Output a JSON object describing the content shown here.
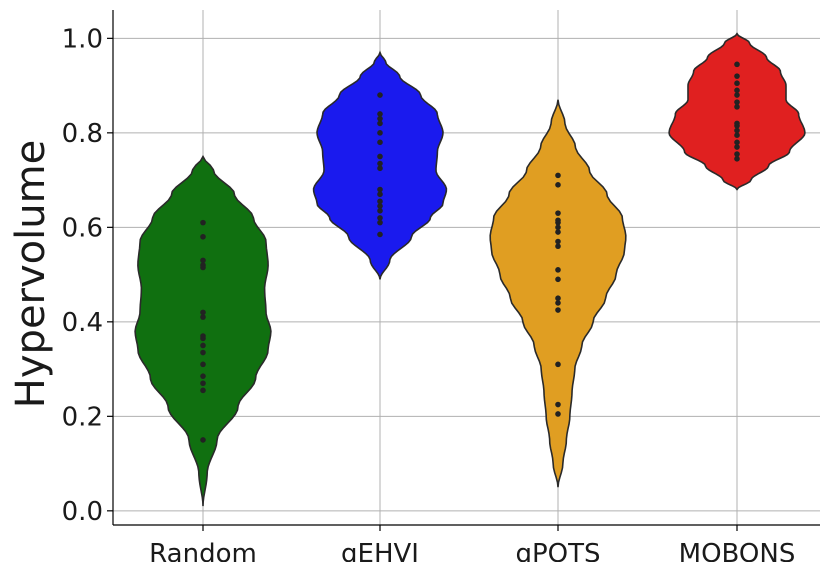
{
  "chart_data": {
    "type": "violin",
    "title": "",
    "xlabel": "",
    "ylabel": "Hypervolume",
    "ylim": [
      -0.03,
      1.06
    ],
    "yticks": [
      0.0,
      0.2,
      0.4,
      0.6,
      0.8,
      1.0
    ],
    "ytick_labels": [
      "0.0",
      "0.2",
      "0.4",
      "0.6",
      "0.8",
      "1.0"
    ],
    "grid": true,
    "categories": [
      "Random",
      "qEHVI",
      "qPOTS",
      "MOBONS"
    ],
    "series": [
      {
        "color": "#107010",
        "violin_range": [
          0.01,
          0.75
        ],
        "profile": [
          [
            0.01,
            0.0
          ],
          [
            0.08,
            0.06
          ],
          [
            0.15,
            0.2
          ],
          [
            0.22,
            0.5
          ],
          [
            0.28,
            0.75
          ],
          [
            0.34,
            0.93
          ],
          [
            0.38,
            0.97
          ],
          [
            0.42,
            0.9
          ],
          [
            0.47,
            0.88
          ],
          [
            0.52,
            0.93
          ],
          [
            0.57,
            0.9
          ],
          [
            0.62,
            0.72
          ],
          [
            0.67,
            0.45
          ],
          [
            0.72,
            0.15
          ],
          [
            0.75,
            0.0
          ]
        ],
        "points": [
          0.15,
          0.255,
          0.27,
          0.285,
          0.31,
          0.335,
          0.35,
          0.365,
          0.37,
          0.41,
          0.42,
          0.515,
          0.52,
          0.53,
          0.58,
          0.61
        ]
      },
      {
        "color": "#1a1aee",
        "violin_range": [
          0.49,
          0.97
        ],
        "profile": [
          [
            0.49,
            0.0
          ],
          [
            0.53,
            0.14
          ],
          [
            0.58,
            0.45
          ],
          [
            0.62,
            0.72
          ],
          [
            0.65,
            0.9
          ],
          [
            0.68,
            0.95
          ],
          [
            0.72,
            0.8
          ],
          [
            0.76,
            0.82
          ],
          [
            0.8,
            0.9
          ],
          [
            0.84,
            0.82
          ],
          [
            0.88,
            0.58
          ],
          [
            0.92,
            0.28
          ],
          [
            0.95,
            0.08
          ],
          [
            0.97,
            0.0
          ]
        ],
        "points": [
          0.585,
          0.61,
          0.62,
          0.635,
          0.645,
          0.655,
          0.67,
          0.68,
          0.725,
          0.735,
          0.75,
          0.78,
          0.8,
          0.82,
          0.83,
          0.84,
          0.88
        ]
      },
      {
        "color": "#e09e22",
        "violin_range": [
          0.05,
          0.87
        ],
        "profile": [
          [
            0.05,
            0.0
          ],
          [
            0.1,
            0.07
          ],
          [
            0.15,
            0.12
          ],
          [
            0.2,
            0.17
          ],
          [
            0.25,
            0.2
          ],
          [
            0.3,
            0.24
          ],
          [
            0.35,
            0.34
          ],
          [
            0.4,
            0.5
          ],
          [
            0.45,
            0.68
          ],
          [
            0.5,
            0.83
          ],
          [
            0.55,
            0.95
          ],
          [
            0.58,
            0.97
          ],
          [
            0.62,
            0.92
          ],
          [
            0.67,
            0.7
          ],
          [
            0.72,
            0.45
          ],
          [
            0.77,
            0.25
          ],
          [
            0.82,
            0.1
          ],
          [
            0.87,
            0.0
          ]
        ],
        "points": [
          0.205,
          0.225,
          0.31,
          0.425,
          0.44,
          0.45,
          0.49,
          0.51,
          0.56,
          0.57,
          0.59,
          0.6,
          0.61,
          0.615,
          0.63,
          0.69,
          0.71
        ]
      },
      {
        "color": "#e02020",
        "violin_range": [
          0.68,
          1.01
        ],
        "profile": [
          [
            0.68,
            0.0
          ],
          [
            0.7,
            0.2
          ],
          [
            0.73,
            0.45
          ],
          [
            0.76,
            0.75
          ],
          [
            0.8,
            0.97
          ],
          [
            0.84,
            0.88
          ],
          [
            0.87,
            0.7
          ],
          [
            0.9,
            0.7
          ],
          [
            0.93,
            0.62
          ],
          [
            0.96,
            0.42
          ],
          [
            0.99,
            0.18
          ],
          [
            1.01,
            0.0
          ]
        ],
        "points": [
          0.745,
          0.755,
          0.77,
          0.78,
          0.795,
          0.805,
          0.815,
          0.82,
          0.855,
          0.865,
          0.88,
          0.89,
          0.905,
          0.92,
          0.945
        ]
      }
    ]
  }
}
